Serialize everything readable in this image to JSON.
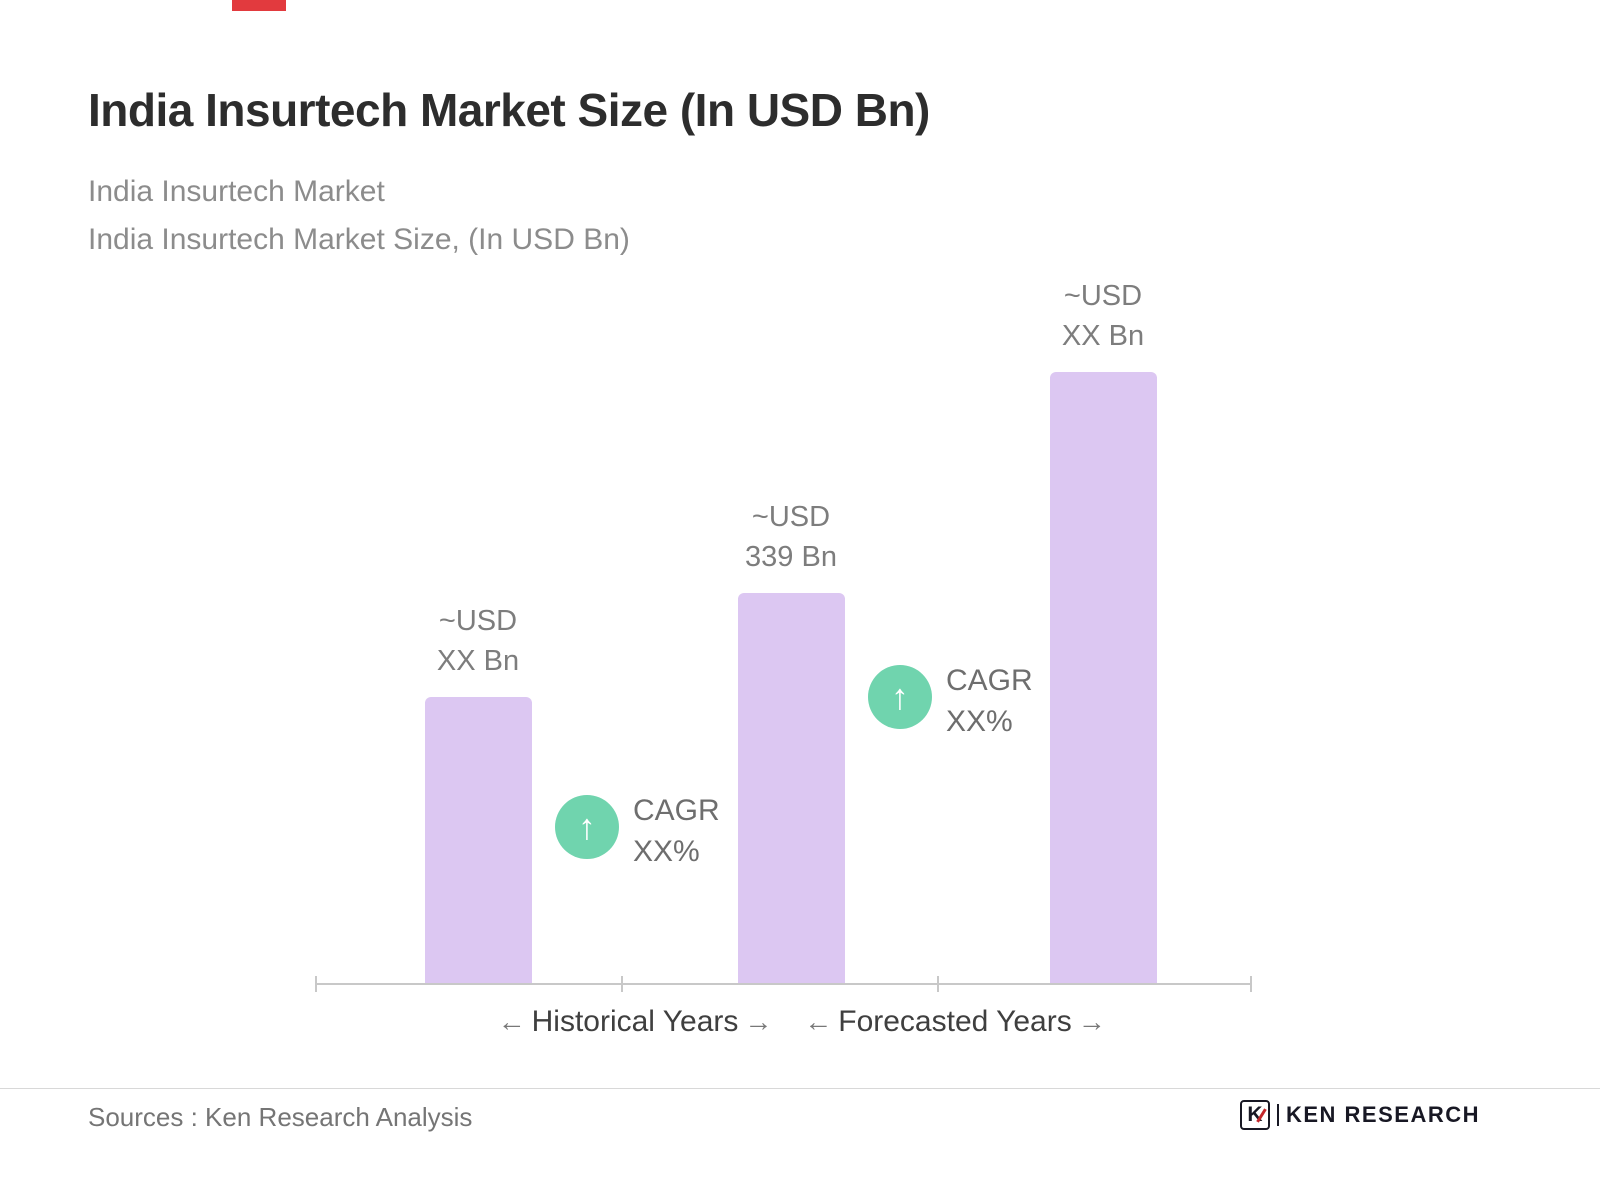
{
  "header": {
    "title": "India Insurtech Market Size (In USD Bn)",
    "subtitle_line1": "India Insurtech Market",
    "subtitle_line2": "India Insurtech Market Size, (In USD Bn)"
  },
  "chart_data": {
    "type": "bar",
    "title": "India Insurtech Market Size, (In USD Bn)",
    "unit": "USD Bn",
    "categories": [
      "Historical Years",
      "Forecasted Years"
    ],
    "bars": [
      {
        "value_label": "~USD XX Bn",
        "label_line1": "~USD",
        "label_line2": "XX Bn",
        "value": null,
        "height_pct": 47
      },
      {
        "value_label": "~USD 339 Bn",
        "label_line1": "~USD",
        "label_line2": "339 Bn",
        "value": 339,
        "height_pct": 64
      },
      {
        "value_label": "~USD XX Bn",
        "label_line1": "~USD",
        "label_line2": "XX Bn",
        "value": null,
        "height_pct": 100
      }
    ],
    "annotations": [
      {
        "line1": "CAGR",
        "line2": "XX%",
        "icon": "up-arrow",
        "icon_glyph": "↑"
      },
      {
        "line1": "CAGR",
        "line2": "XX%",
        "icon": "up-arrow",
        "icon_glyph": "↑"
      }
    ],
    "axis": {
      "historical_label": "Historical Years",
      "forecasted_label": "Forecasted Years",
      "left_arrow": "←",
      "right_arrow": "→"
    },
    "colors": {
      "bar": "#dcc7f2",
      "annotation_circle": "#70d4ae",
      "accent_red": "#e23a3e"
    },
    "legend": null,
    "grid": false
  },
  "footer": {
    "sources": "Sources : Ken Research Analysis",
    "logo_letter": "K",
    "logo_text": "KEN RESEARCH"
  }
}
